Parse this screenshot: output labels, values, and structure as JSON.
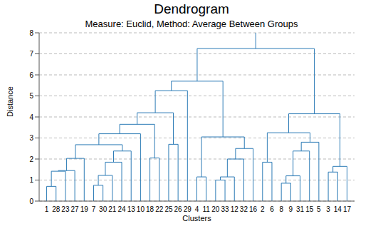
{
  "chart_data": {
    "type": "dendrogram",
    "title": "Dendrogram",
    "subtitle": "Measure: Euclid, Method: Average Between Groups",
    "x_label": "Clusters",
    "y_label": "Distance",
    "color": "#2c7bb6",
    "grid": true,
    "ylim": [
      0,
      8
    ],
    "yticks": [
      0,
      1,
      2,
      3,
      4,
      5,
      6,
      7,
      8
    ],
    "leaves": [
      "1",
      "28",
      "23",
      "27",
      "19",
      "7",
      "30",
      "21",
      "24",
      "13",
      "10",
      "18",
      "22",
      "25",
      "26",
      "29",
      "4",
      "11",
      "20",
      "33",
      "12",
      "32",
      "16",
      "2",
      "6",
      "8",
      "9",
      "31",
      "15",
      "5",
      "3",
      "14",
      "17"
    ],
    "merges": [
      {
        "children": [
          0,
          1
        ],
        "height": 0.7
      },
      {
        "children": [
          33,
          2
        ],
        "height": 1.42
      },
      {
        "children": [
          34,
          3
        ],
        "height": 1.45
      },
      {
        "children": [
          35,
          4
        ],
        "height": 2.03
      },
      {
        "children": [
          5,
          6
        ],
        "height": 0.75
      },
      {
        "children": [
          37,
          7
        ],
        "height": 1.22
      },
      {
        "children": [
          38,
          8
        ],
        "height": 1.85
      },
      {
        "children": [
          39,
          9
        ],
        "height": 2.38
      },
      {
        "children": [
          36,
          40
        ],
        "height": 2.68
      },
      {
        "children": [
          41,
          10
        ],
        "height": 3.2
      },
      {
        "children": [
          11,
          12
        ],
        "height": 2.05
      },
      {
        "children": [
          42,
          43
        ],
        "height": 3.65
      },
      {
        "children": [
          13,
          14
        ],
        "height": 2.7
      },
      {
        "children": [
          44,
          45
        ],
        "height": 4.2
      },
      {
        "children": [
          46,
          15
        ],
        "height": 5.25
      },
      {
        "children": [
          16,
          17
        ],
        "height": 1.15
      },
      {
        "children": [
          18,
          19
        ],
        "height": 1.0
      },
      {
        "children": [
          49,
          20
        ],
        "height": 1.15
      },
      {
        "children": [
          50,
          21
        ],
        "height": 2.0
      },
      {
        "children": [
          51,
          22
        ],
        "height": 2.5
      },
      {
        "children": [
          48,
          52
        ],
        "height": 3.05
      },
      {
        "children": [
          47,
          53
        ],
        "height": 5.7
      },
      {
        "children": [
          23,
          24
        ],
        "height": 1.85
      },
      {
        "children": [
          25,
          26
        ],
        "height": 0.85
      },
      {
        "children": [
          56,
          27
        ],
        "height": 1.2
      },
      {
        "children": [
          57,
          28
        ],
        "height": 2.38
      },
      {
        "children": [
          58,
          29
        ],
        "height": 2.8
      },
      {
        "children": [
          55,
          59
        ],
        "height": 3.25
      },
      {
        "children": [
          30,
          31
        ],
        "height": 1.38
      },
      {
        "children": [
          61,
          32
        ],
        "height": 1.65
      },
      {
        "children": [
          60,
          62
        ],
        "height": 4.15
      },
      {
        "children": [
          54,
          63
        ],
        "height": 7.25
      }
    ]
  }
}
